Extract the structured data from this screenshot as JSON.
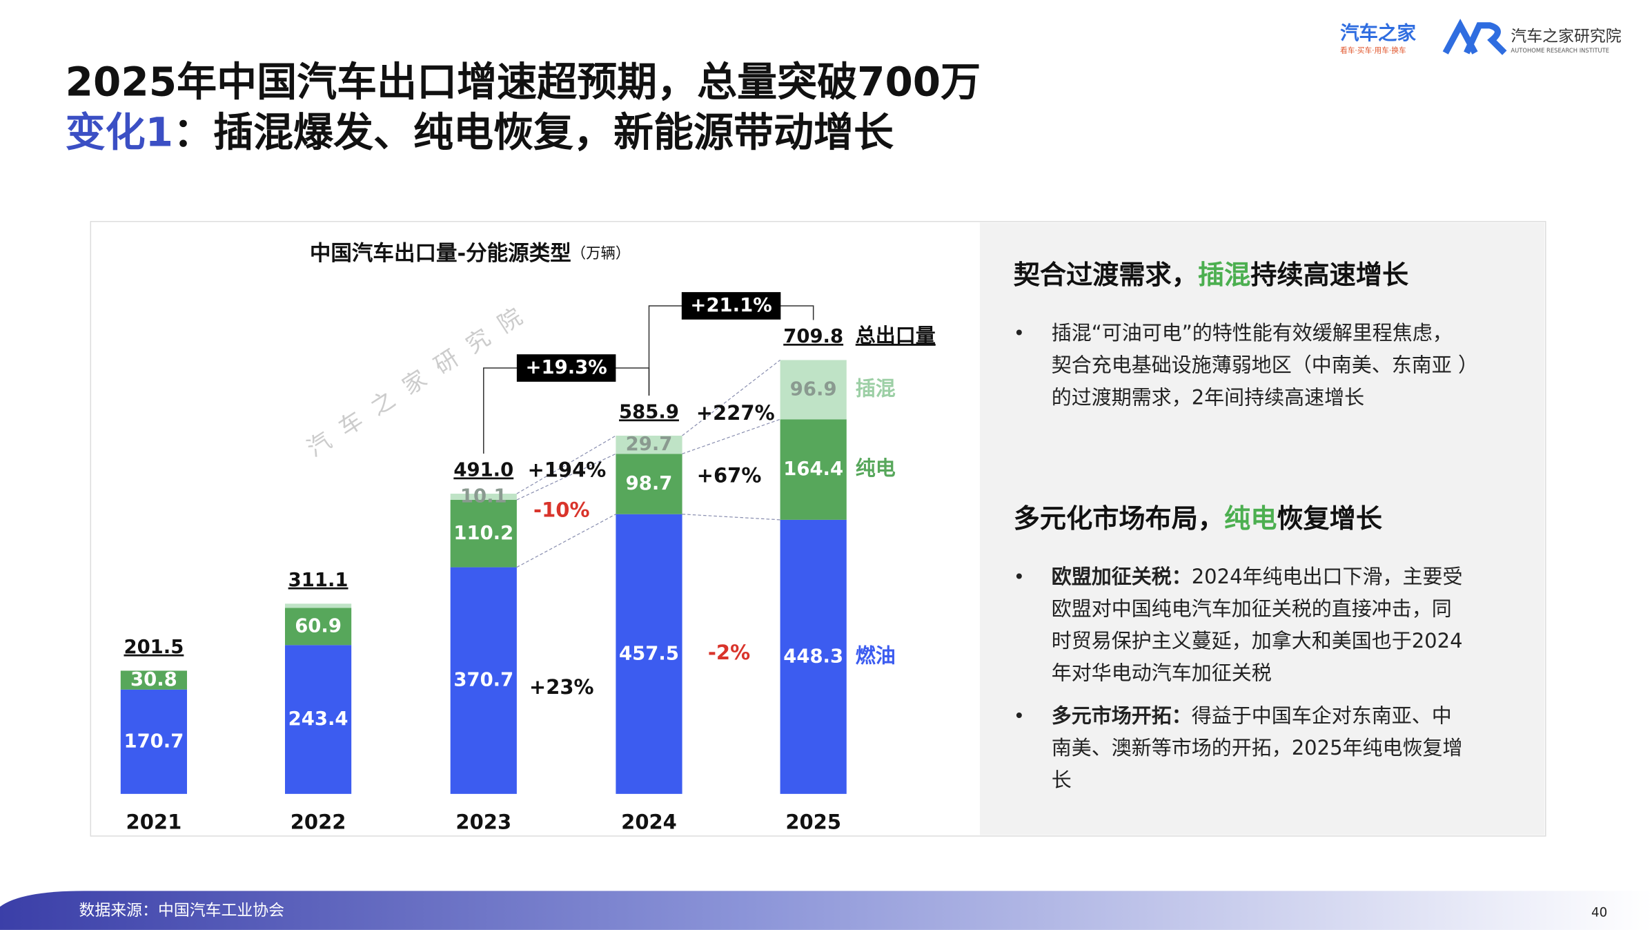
{
  "header": {
    "title": "2025年中国汽车出口增速超预期，总量突破700万",
    "subtitle_highlight": "变化1",
    "subtitle": "：插混爆发、纯电恢复，新能源带动增长"
  },
  "logos": {
    "brand": "汽车之家",
    "brand_slogan": "看车·买车·用车·换车",
    "institute": "汽车之家研究院",
    "institute_en": "AUTOHOME RESEARCH INSTITUTE"
  },
  "chart_data": {
    "type": "stacked_bar",
    "title": "中国汽车出口量-分能源类型",
    "unit": "（万辆）",
    "categories": [
      "2021",
      "2022",
      "2023",
      "2024",
      "2025"
    ],
    "series": [
      {
        "name": "燃油",
        "color": "#3c5cf0",
        "values": [
          170.7,
          243.4,
          370.7,
          457.5,
          448.3
        ]
      },
      {
        "name": "纯电",
        "color": "#57a75b",
        "values": [
          30.8,
          60.9,
          110.2,
          98.7,
          164.4
        ]
      },
      {
        "name": "插混",
        "color": "#bfe3c6",
        "values": [
          0,
          6.8,
          10.1,
          29.7,
          96.9
        ],
        "value_labels": [
          null,
          null,
          "10.1",
          "29.7",
          "96.9"
        ]
      }
    ],
    "totals": {
      "name": "总出口量",
      "values": [
        201.5,
        311.1,
        491.0,
        585.9,
        709.8
      ],
      "value_labels": [
        "201.5",
        "311.1",
        "491.0",
        "585.9",
        "709.8"
      ]
    },
    "annotations": [
      {
        "text": "+194%",
        "color": "#111111"
      },
      {
        "text": "-10%",
        "color": "#d9342b"
      },
      {
        "text": "+23%",
        "color": "#111111"
      },
      {
        "text": "+227%",
        "color": "#111111"
      },
      {
        "text": "+67%",
        "color": "#111111"
      },
      {
        "text": "-2%",
        "color": "#d9342b"
      }
    ],
    "total_growth": [
      "+19.3%",
      "+21.1%"
    ],
    "watermark": "汽车之家研究院",
    "ylim": [
      0,
      900
    ]
  },
  "panel": {
    "sections": [
      {
        "heading": [
          {
            "text": "契合过渡需求，"
          },
          {
            "text": "插混",
            "highlight": true
          },
          {
            "text": "持续高速增长"
          }
        ],
        "bullets": [
          {
            "lines": [
              "插混“可油可电”的特性能有效缓解里程焦虑，",
              "契合充电基础设施薄弱地区（中南美、东南亚 ）",
              "的过渡期需求，2年间持续高速增长"
            ]
          }
        ]
      },
      {
        "heading": [
          {
            "text": "多元化市场布局，"
          },
          {
            "text": "纯电",
            "highlight": true
          },
          {
            "text": "恢复增长"
          }
        ],
        "bullets": [
          {
            "bold": "欧盟加征关税：",
            "lines": [
              "2024年纯电出口下滑，主要受",
              "欧盟对中国纯电汽车加征关税的直接冲击，同",
              "时贸易保护主义蔓延，加拿大和美国也于2024",
              "年对华电动汽车加征关税"
            ]
          },
          {
            "bold": "多元市场开拓：",
            "lines": [
              "得益于中国车企对东南亚、中",
              "南美、澳新等市场的开拓，2025年纯电恢复增",
              "长"
            ]
          }
        ]
      }
    ]
  },
  "footer": {
    "source": "数据来源：中国汽车工业协会",
    "page_number": "40"
  }
}
